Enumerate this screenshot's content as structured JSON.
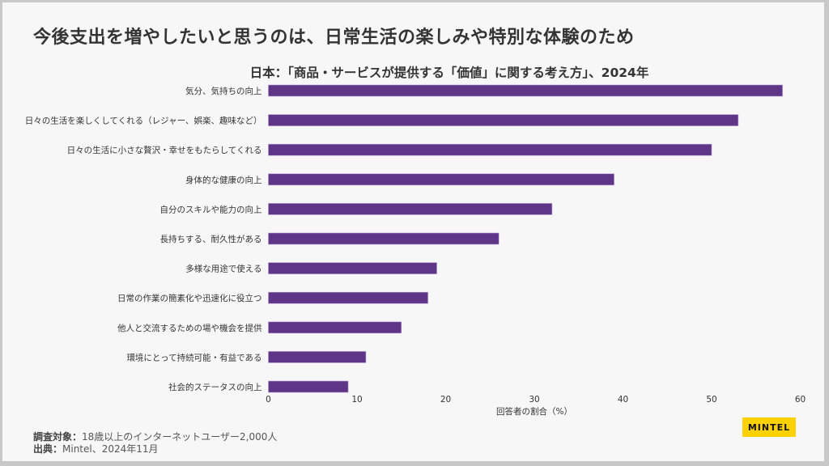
{
  "title": "今後支出を増やしたいと思うのは、日常生活の楽しみや特別な体験のため",
  "notes": {
    "survey_label": "調査対象：",
    "survey_value": "18歳以上のインターネットユーザー2,000人",
    "source_label": "出典：",
    "source_value": "Mintel、2024年11月"
  },
  "logo": {
    "text": "MINTEL",
    "color": "#ffd100"
  },
  "colors": {
    "bar": "#5e3587",
    "background": "#f7f7f7"
  },
  "chart_data": {
    "type": "bar",
    "orientation": "horizontal",
    "title": "日本：「商品・サービスが提供する「価値」に関する考え方」、2024年",
    "xlabel": "回答者の割合（%）",
    "ylabel": "",
    "xlim": [
      0,
      60
    ],
    "ticks": [
      0,
      10,
      20,
      30,
      40,
      50,
      60
    ],
    "grid": false,
    "categories": [
      "気分、気持ちの向上",
      "日々の生活を楽しくしてくれる（レジャー、娯楽、趣味など）",
      "日々の生活に小さな贅沢・幸せをもたらしてくれる",
      "身体的な健康の向上",
      "自分のスキルや能力の向上",
      "長持ちする、耐久性がある",
      "多様な用途で使える",
      "日常の作業の簡素化や迅速化に役立つ",
      "他人と交流するための場や機会を提供",
      "環境にとって持続可能・有益である",
      "社会的ステータスの向上"
    ],
    "values": [
      58,
      53,
      50,
      39,
      32,
      26,
      19,
      18,
      15,
      11,
      9
    ]
  }
}
